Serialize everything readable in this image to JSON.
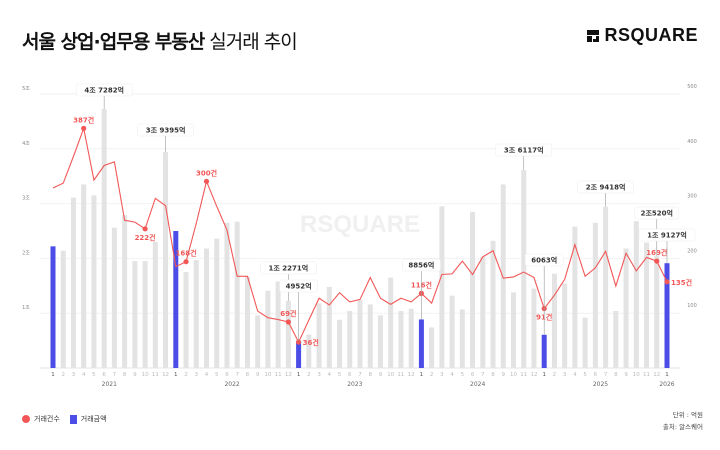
{
  "header": {
    "title_bold": "서울 상업·업무용 부동산",
    "title_light": "실거래 추이",
    "logo_text": "RSQUARE"
  },
  "watermark": "RSQUARE",
  "legend": [
    {
      "label": "거래건수",
      "color": "#f25757",
      "shape": "circle"
    },
    {
      "label": "거래금액",
      "color": "#4b4de6",
      "shape": "square"
    }
  ],
  "footer": {
    "unit": "단위 : 억원",
    "source": "출처: 알스퀘어"
  },
  "chart_data": {
    "type": "bar+line",
    "x": [
      "2021-01",
      "2021-02",
      "2021-03",
      "2021-04",
      "2021-05",
      "2021-06",
      "2021-07",
      "2021-08",
      "2021-09",
      "2021-10",
      "2021-11",
      "2021-12",
      "2022-01",
      "2022-02",
      "2022-03",
      "2022-04",
      "2022-05",
      "2022-06",
      "2022-07",
      "2022-08",
      "2022-09",
      "2022-10",
      "2022-11",
      "2022-12",
      "2023-01",
      "2023-02",
      "2023-03",
      "2023-04",
      "2023-05",
      "2023-06",
      "2023-07",
      "2023-08",
      "2023-09",
      "2023-10",
      "2023-11",
      "2023-12",
      "2024-01",
      "2024-02",
      "2024-03",
      "2024-04",
      "2024-05",
      "2024-06",
      "2024-07",
      "2024-08",
      "2024-09",
      "2024-10",
      "2024-11",
      "2024-12",
      "2025-01",
      "2025-02",
      "2025-03",
      "2025-04",
      "2025-05",
      "2025-06",
      "2025-07",
      "2025-08",
      "2025-09",
      "2025-10",
      "2025-11",
      "2025-12",
      "2026-01"
    ],
    "years": [
      "2021",
      "2022",
      "2023",
      "2024",
      "2025",
      "2026"
    ],
    "left_axis": {
      "ticks": [
        "1조",
        "2조",
        "3조",
        "4조",
        "5조"
      ],
      "range": [
        0,
        50000
      ],
      "unit": "억원"
    },
    "right_axis": {
      "ticks": [
        "100",
        "200",
        "300",
        "400",
        "500"
      ],
      "range": [
        0,
        500
      ]
    },
    "grid": true,
    "legend_position": "bottom-left",
    "series": [
      {
        "name": "거래금액",
        "type": "bar",
        "color": "#e3e3e3",
        "highlight_color": "#4b4de6",
        "highlight_month": 1,
        "values": [
          22200,
          21400,
          31100,
          33500,
          31500,
          47282,
          25600,
          27900,
          19500,
          19500,
          23000,
          39395,
          25000,
          17500,
          19700,
          21800,
          23600,
          26500,
          26700,
          16700,
          9600,
          14100,
          15800,
          12271,
          4952,
          6100,
          11800,
          14800,
          8800,
          10400,
          12400,
          11600,
          9600,
          16500,
          10400,
          10800,
          8856,
          7400,
          29500,
          13200,
          10700,
          28500,
          20300,
          23200,
          33500,
          13800,
          36117,
          14500,
          6063,
          17200,
          15400,
          25800,
          9200,
          26500,
          29418,
          10400,
          21800,
          26800,
          22900,
          20520,
          19127
        ]
      },
      {
        "name": "거래건수",
        "type": "line",
        "color": "#f25757",
        "values": [
          289,
          297,
          341,
          387,
          302,
          326,
          332,
          236,
          233,
          222,
          272,
          260,
          160,
          168,
          231,
          300,
          259,
          220,
          144,
          144,
          87,
          76,
          73,
          69,
          36,
          72,
          108,
          97,
          117,
          102,
          106,
          142,
          108,
          98,
          108,
          102,
          116,
          100,
          147,
          148,
          169,
          147,
          176,
          186,
          141,
          143,
          151,
          142,
          91,
          113,
          139,
          196,
          144,
          158,
          185,
          128,
          182,
          153,
          175,
          169,
          135
        ]
      }
    ],
    "amount_callouts": [
      {
        "x": "2021-06",
        "label": "4조 7282억"
      },
      {
        "x": "2021-12",
        "label": "3조 9395억"
      },
      {
        "x": "2022-12",
        "label": "1조 2271억"
      },
      {
        "x": "2023-01",
        "label": "4952억"
      },
      {
        "x": "2024-01",
        "label": "8856억"
      },
      {
        "x": "2024-11",
        "label": "3조 6117억"
      },
      {
        "x": "2025-01",
        "label": "6063억"
      },
      {
        "x": "2025-07",
        "label": "2조 9418억"
      },
      {
        "x": "2025-12",
        "label": "2조520억"
      },
      {
        "x": "2026-01",
        "label": "1조 9127억"
      }
    ],
    "count_labels": [
      {
        "x": "2021-04",
        "label": "387건",
        "pos": "above"
      },
      {
        "x": "2021-10",
        "label": "222건",
        "pos": "below"
      },
      {
        "x": "2022-02",
        "label": "168건",
        "pos": "above"
      },
      {
        "x": "2022-04",
        "label": "300건",
        "pos": "above"
      },
      {
        "x": "2022-12",
        "label": "69건",
        "pos": "above"
      },
      {
        "x": "2023-01",
        "label": "36건",
        "pos": "right"
      },
      {
        "x": "2024-01",
        "label": "116건",
        "pos": "above"
      },
      {
        "x": "2025-01",
        "label": "91건",
        "pos": "below"
      },
      {
        "x": "2025-12",
        "label": "169건",
        "pos": "above"
      },
      {
        "x": "2026-01",
        "label": "135건",
        "pos": "right"
      }
    ]
  }
}
